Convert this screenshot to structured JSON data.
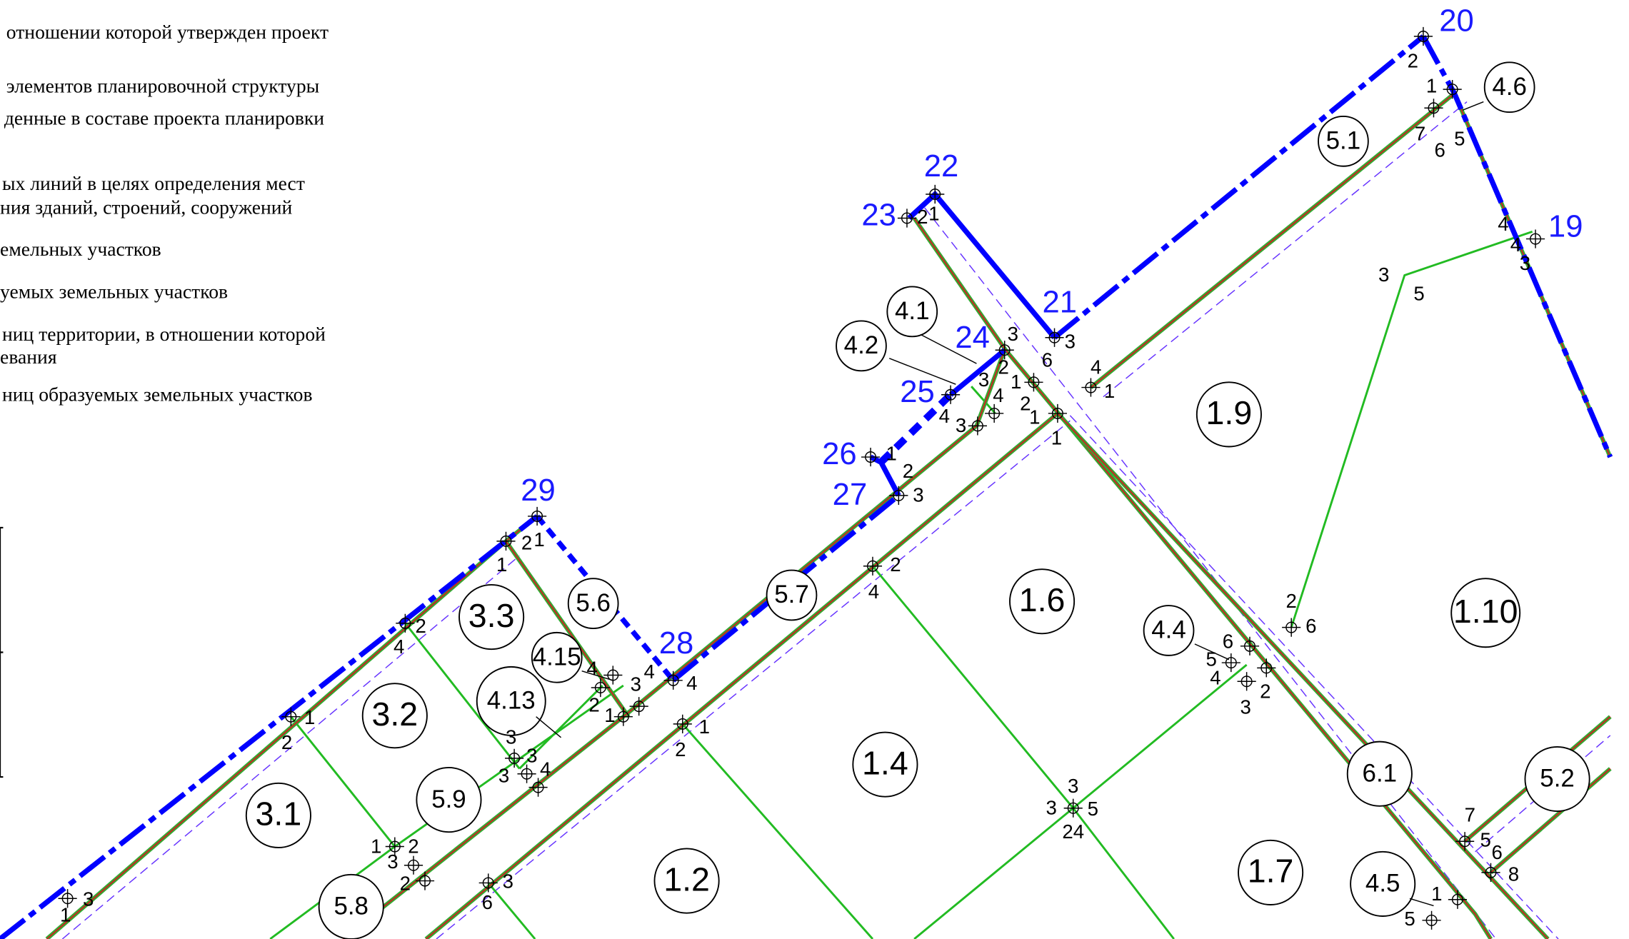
{
  "legend": [
    "отношении которой утвержден проект",
    "элементов планировочной структуры",
    "денные в составе проекта планировки",
    "ых линий в целях определения мест",
    "ния зданий, строений, сооружений",
    "емельных участков",
    "уемых земельных участков",
    "ниц территории, в отношении которой",
    "евания",
    "ниц образуемых земельных участков"
  ],
  "points": [
    "20",
    "19",
    "22",
    "23",
    "21",
    "24",
    "25",
    "26",
    "27",
    "29",
    "28"
  ],
  "parcels": [
    "4.6",
    "5.1",
    "1.9",
    "4.1",
    "4.2",
    "1.6",
    "1.10",
    "4.4",
    "5.6",
    "5.7",
    "3.3",
    "4.15",
    "4.13",
    "3.2",
    "1.4",
    "5.9",
    "3.1",
    "6.1",
    "5.2",
    "1.2",
    "1.7",
    "4.5",
    "5.8"
  ],
  "vertex_labels": [
    "2",
    "1",
    "7",
    "6",
    "5",
    "4",
    "4",
    "3",
    "3",
    "5",
    "2",
    "1",
    "3",
    "6",
    "3",
    "4",
    "1",
    "2",
    "3",
    "1",
    "2",
    "4",
    "1",
    "1",
    "4",
    "3",
    "1",
    "2",
    "3",
    "2",
    "4",
    "1",
    "2",
    "2",
    "6",
    "6",
    "5",
    "4",
    "3",
    "2",
    "3",
    "3",
    "5",
    "24",
    "1",
    "2",
    "1",
    "2",
    "4",
    "1",
    "2",
    "4",
    "3",
    "4",
    "4",
    "2",
    "1",
    "3",
    "3",
    "3",
    "4",
    "1",
    "2",
    "3",
    "2",
    "3",
    "6",
    "3",
    "1",
    "7",
    "5",
    "6",
    "8",
    "1",
    "5"
  ]
}
